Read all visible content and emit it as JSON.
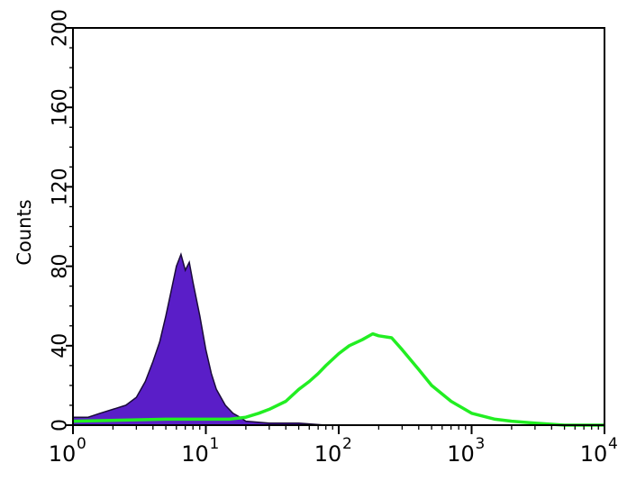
{
  "chart_data": {
    "type": "area",
    "title": "",
    "xlabel": "",
    "ylabel": "Counts",
    "x_scale": "log",
    "xlim": [
      1,
      10000
    ],
    "ylim": [
      0,
      200
    ],
    "x_tick_labels": [
      {
        "base": "10",
        "exp": "0"
      },
      {
        "base": "10",
        "exp": "1"
      },
      {
        "base": "10",
        "exp": "2"
      },
      {
        "base": "10",
        "exp": "3"
      },
      {
        "base": "10",
        "exp": "4"
      }
    ],
    "x_tick_values": [
      1,
      10,
      100,
      1000,
      10000
    ],
    "y_ticks": [
      0,
      40,
      80,
      120,
      160,
      200
    ],
    "y_tick_labels": [
      "0",
      "40",
      "80",
      "120",
      "160",
      "200"
    ],
    "grid": false,
    "series": [
      {
        "color": "#5a1ec8",
        "style": "filled",
        "x": [
          1,
          1.3,
          1.6,
          2,
          2.5,
          3,
          3.5,
          4,
          4.5,
          5,
          5.5,
          6,
          6.5,
          7,
          7.5,
          8,
          9,
          10,
          11,
          12,
          14,
          16,
          18,
          20,
          30,
          50,
          80
        ],
        "y": [
          4,
          4,
          6,
          8,
          10,
          14,
          22,
          32,
          42,
          55,
          68,
          80,
          86,
          78,
          82,
          72,
          55,
          38,
          26,
          18,
          10,
          6,
          4,
          2,
          1,
          1,
          0
        ]
      },
      {
        "color": "#22ee22",
        "style": "line",
        "x": [
          1,
          5,
          10,
          15,
          20,
          25,
          30,
          40,
          50,
          60,
          70,
          80,
          100,
          120,
          150,
          180,
          200,
          250,
          300,
          400,
          500,
          700,
          1000,
          1500,
          2000,
          3000,
          5000,
          10000
        ],
        "y": [
          2,
          3,
          3,
          3,
          4,
          6,
          8,
          12,
          18,
          22,
          26,
          30,
          36,
          40,
          43,
          46,
          45,
          44,
          38,
          28,
          20,
          12,
          6,
          3,
          2,
          1,
          0,
          0
        ]
      }
    ]
  }
}
